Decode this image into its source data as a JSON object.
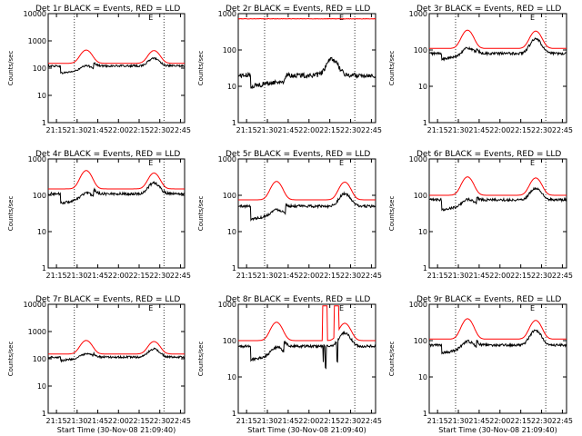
{
  "chart_data": {
    "type": "line",
    "layout": "3x3 grid of panels",
    "yscale": "log",
    "ylim": [
      1,
      10000
    ],
    "ytick_labels": [
      "1",
      "10",
      "100",
      "1000",
      "10000"
    ],
    "xtick_labels": [
      "21:15",
      "21:30",
      "21:45",
      "22:00",
      "22:15",
      "22:30",
      "22:45"
    ],
    "xlabel": "Start Time (30-Nov-08 21:09:40)",
    "ylabel": "Counts/sec",
    "grid": false,
    "vertical_dotted_lines_at": [
      "21:28",
      "22:33"
    ],
    "colors": {
      "events": "#000000",
      "lld": "#ff0000"
    },
    "panels": [
      {
        "title": "Det 1r BLACK = Events, RED = LLD",
        "ytick_labels": [
          "1",
          "10",
          "100",
          "1000",
          "10000"
        ],
        "show_ylabel": true,
        "show_xlabel": false,
        "ylim": [
          1,
          10000
        ],
        "series": [
          {
            "color": "red",
            "base": 150,
            "peaks": [
              [
                21.61,
                460
              ],
              [
                22.43,
                440
              ]
            ]
          },
          {
            "color": "black",
            "base": 120,
            "peaks": [
              [
                21.61,
                240
              ],
              [
                22.43,
                230
              ]
            ],
            "dip": [
              21.3,
              21.7,
              65
            ],
            "noise": 0.08
          }
        ]
      },
      {
        "title": "Det 2r BLACK = Events, RED = LLD",
        "ytick_labels": [
          "1",
          "10",
          "100",
          "1000"
        ],
        "show_ylabel": true,
        "show_xlabel": false,
        "ylim": [
          1,
          1000
        ],
        "series": [
          {
            "color": "red",
            "base": 720,
            "peaks": [],
            "noise": 0.015
          },
          {
            "color": "black",
            "base": 20,
            "peaks": [
              [
                22.28,
                55
              ]
            ],
            "dip": [
              21.3,
              21.72,
              10
            ],
            "noise": 0.15
          }
        ]
      },
      {
        "title": "Det 3r BLACK = Events, RED = LLD",
        "ytick_labels": [
          "1",
          "10",
          "100",
          "1000"
        ],
        "show_ylabel": true,
        "show_xlabel": false,
        "ylim": [
          1,
          1000
        ],
        "series": [
          {
            "color": "red",
            "base": 110,
            "peaks": [
              [
                21.61,
                350
              ],
              [
                22.43,
                330
              ]
            ]
          },
          {
            "color": "black",
            "base": 80,
            "peaks": [
              [
                21.61,
                220
              ],
              [
                22.43,
                200
              ]
            ],
            "dip": [
              21.3,
              21.72,
              55
            ],
            "noise": 0.08
          }
        ]
      },
      {
        "title": "Det 4r BLACK = Events, RED = LLD",
        "ytick_labels": [
          "1",
          "10",
          "100",
          "1000"
        ],
        "show_ylabel": true,
        "show_xlabel": false,
        "ylim": [
          1,
          1000
        ],
        "series": [
          {
            "color": "red",
            "base": 150,
            "peaks": [
              [
                21.61,
                480
              ],
              [
                22.43,
                410
              ]
            ]
          },
          {
            "color": "black",
            "base": 110,
            "peaks": [
              [
                21.61,
                230
              ],
              [
                22.43,
                220
              ]
            ],
            "dip": [
              21.3,
              21.7,
              60
            ],
            "noise": 0.08
          }
        ]
      },
      {
        "title": "Det 5r BLACK = Events, RED = LLD",
        "ytick_labels": [
          "1",
          "10",
          "100",
          "1000"
        ],
        "show_ylabel": true,
        "show_xlabel": false,
        "ylim": [
          1,
          1000
        ],
        "series": [
          {
            "color": "red",
            "base": 75,
            "peaks": [
              [
                21.61,
                240
              ],
              [
                22.43,
                230
              ]
            ]
          },
          {
            "color": "black",
            "base": 50,
            "peaks": [
              [
                21.61,
                90
              ],
              [
                22.43,
                110
              ]
            ],
            "dip": [
              21.3,
              21.72,
              22
            ],
            "noise": 0.08
          }
        ]
      },
      {
        "title": "Det 6r BLACK = Events, RED = LLD",
        "ytick_labels": [
          "1",
          "10",
          "100",
          "1000"
        ],
        "show_ylabel": true,
        "show_xlabel": false,
        "ylim": [
          1,
          1000
        ],
        "series": [
          {
            "color": "red",
            "base": 100,
            "peaks": [
              [
                21.61,
                320
              ],
              [
                22.43,
                300
              ]
            ]
          },
          {
            "color": "black",
            "base": 75,
            "peaks": [
              [
                21.61,
                160
              ],
              [
                22.43,
                155
              ]
            ],
            "dip": [
              21.3,
              21.72,
              40
            ],
            "noise": 0.08
          }
        ]
      },
      {
        "title": "Det 7r BLACK = Events, RED = LLD",
        "ytick_labels": [
          "1",
          "10",
          "100",
          "1000",
          "10000"
        ],
        "show_ylabel": true,
        "show_xlabel": true,
        "ylim": [
          1,
          10000
        ],
        "series": [
          {
            "color": "red",
            "base": 150,
            "peaks": [
              [
                21.61,
                470
              ],
              [
                22.43,
                430
              ]
            ]
          },
          {
            "color": "black",
            "base": 115,
            "peaks": [
              [
                21.61,
                240
              ],
              [
                22.43,
                230
              ]
            ],
            "dip": [
              21.3,
              21.7,
              85
            ],
            "noise": 0.08
          }
        ]
      },
      {
        "title": "Det 8r BLACK = Events, RED = LLD",
        "ytick_labels": [
          "1",
          "10",
          "100",
          "1000"
        ],
        "show_ylabel": true,
        "show_xlabel": true,
        "ylim": [
          1,
          1000
        ],
        "series": [
          {
            "color": "red",
            "base": 100,
            "peaks": [
              [
                21.61,
                320
              ],
              [
                22.43,
                300
              ]
            ],
            "spikes": [
              [
                22.16,
                22.22,
                900
              ],
              [
                22.3,
                22.36,
                900
              ]
            ]
          },
          {
            "color": "black",
            "base": 70,
            "peaks": [
              [
                21.61,
                160
              ],
              [
                22.43,
                160
              ]
            ],
            "dip": [
              21.3,
              21.7,
              30
            ],
            "drops": [
              [
                22.17,
                25
              ],
              [
                22.2,
                18
              ],
              [
                22.34,
                25
              ]
            ],
            "noise": 0.08
          }
        ]
      },
      {
        "title": "Det 9r BLACK = Events, RED = LLD",
        "ytick_labels": [
          "1",
          "10",
          "100",
          "1000"
        ],
        "show_ylabel": true,
        "show_xlabel": true,
        "ylim": [
          1,
          1000
        ],
        "series": [
          {
            "color": "red",
            "base": 110,
            "peaks": [
              [
                21.61,
                400
              ],
              [
                22.43,
                360
              ]
            ]
          },
          {
            "color": "black",
            "base": 75,
            "peaks": [
              [
                21.61,
                200
              ],
              [
                22.43,
                190
              ]
            ],
            "dip": [
              21.3,
              21.72,
              45
            ],
            "noise": 0.08
          }
        ]
      }
    ]
  }
}
